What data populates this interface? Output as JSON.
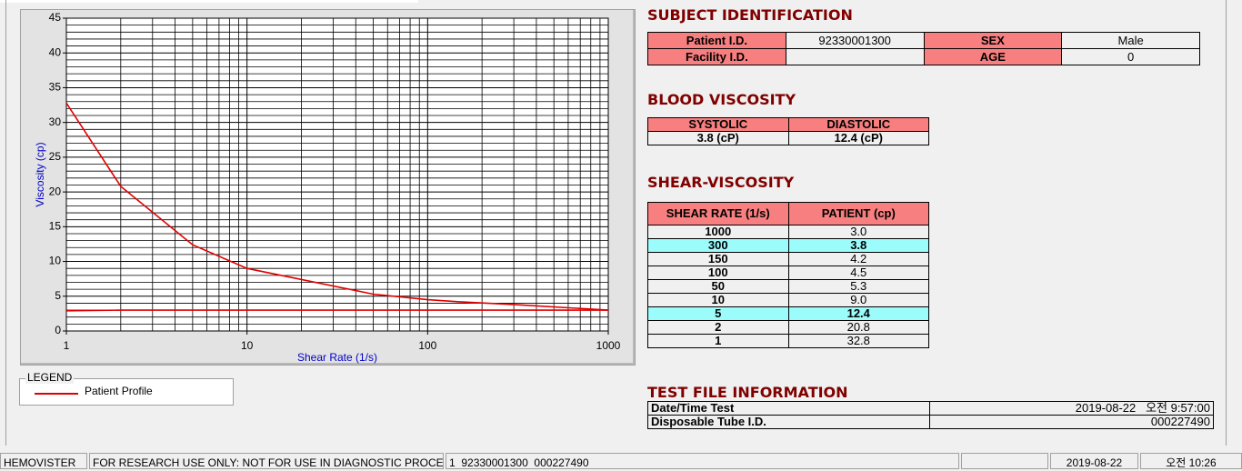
{
  "chart_data": {
    "type": "line",
    "xscale": "log",
    "x_label": "Shear Rate (1/s)",
    "y_label": "Viscosity (cp)",
    "x": [
      1,
      2,
      5,
      10,
      50,
      100,
      150,
      300,
      1000
    ],
    "series": [
      {
        "name": "Patient Profile",
        "color": "#e00000",
        "values": [
          32.8,
          20.8,
          12.4,
          9.0,
          5.3,
          4.5,
          4.2,
          3.8,
          3.0
        ]
      },
      {
        "color": "#e00000",
        "values": [
          2.9,
          3.0,
          3.0,
          3.0,
          3.0,
          3.0,
          3.0,
          3.0,
          3.0
        ]
      }
    ],
    "xlim": [
      1,
      1000
    ],
    "xticks": [
      1,
      10,
      100,
      1000
    ],
    "ylim": [
      0,
      45
    ],
    "yticks": [
      0,
      5,
      10,
      15,
      20,
      25,
      30,
      35,
      40,
      45
    ],
    "grid": true,
    "xminor": [
      2,
      3,
      4,
      5,
      6,
      7,
      8,
      9,
      20,
      30,
      40,
      50,
      60,
      70,
      80,
      90,
      200,
      300,
      400,
      500,
      600,
      700,
      800,
      900
    ],
    "yminor": [
      1,
      2,
      3,
      4,
      6,
      7,
      8,
      9,
      11,
      12,
      13,
      14,
      16,
      17,
      18,
      19,
      21,
      22,
      23,
      24,
      26,
      27,
      28,
      29,
      31,
      32,
      33,
      34,
      36,
      37,
      38,
      39,
      41,
      42,
      43,
      44
    ]
  },
  "legend": {
    "title": "LEGEND"
  },
  "subject_identification": {
    "title": "SUBJECT IDENTIFICATION",
    "patient_id_label": "Patient I.D.",
    "patient_id": "92330001300",
    "sex_label": "SEX",
    "sex": "Male",
    "facility_id_label": "Facility I.D.",
    "age_label": "AGE",
    "age": 0
  },
  "blood_viscosity": {
    "title": "BLOOD VISCOSITY",
    "headers": [
      "SYSTOLIC",
      "DIASTOLIC"
    ],
    "values": [
      "3.8 (cP)",
      "12.4 (cP)"
    ]
  },
  "shear_viscosity": {
    "title": "SHEAR-VISCOSITY",
    "headers": [
      "SHEAR RATE (1/s)",
      "PATIENT (cp)"
    ],
    "rows": [
      {
        "rate": "1000",
        "patient": "3.0",
        "highlight": false
      },
      {
        "rate": "300",
        "patient": "3.8",
        "highlight": true
      },
      {
        "rate": "150",
        "patient": "4.2",
        "highlight": false
      },
      {
        "rate": "100",
        "patient": "4.5",
        "highlight": false
      },
      {
        "rate": "50",
        "patient": "5.3",
        "highlight": false
      },
      {
        "rate": "10",
        "patient": "9.0",
        "highlight": false
      },
      {
        "rate": "5",
        "patient": "12.4",
        "highlight": true
      },
      {
        "rate": "2",
        "patient": "20.8",
        "highlight": false
      },
      {
        "rate": "1",
        "patient": "32.8",
        "highlight": false
      }
    ]
  },
  "test_file": {
    "title": "TEST FILE INFORMATION",
    "rows": [
      [
        "Date/Time Test",
        "2019-08-22   오전 9:57:00"
      ],
      [
        "Disposable Tube I.D.",
        "000227490"
      ]
    ]
  },
  "status_bar": {
    "app": "HEMOVISTER",
    "notice": "FOR RESEARCH USE ONLY: NOT FOR USE IN DIAGNOSTIC PROCEDURES",
    "record": "1  92330001300  000227490",
    "date": "2019-08-22",
    "time": "오전 10:26"
  }
}
